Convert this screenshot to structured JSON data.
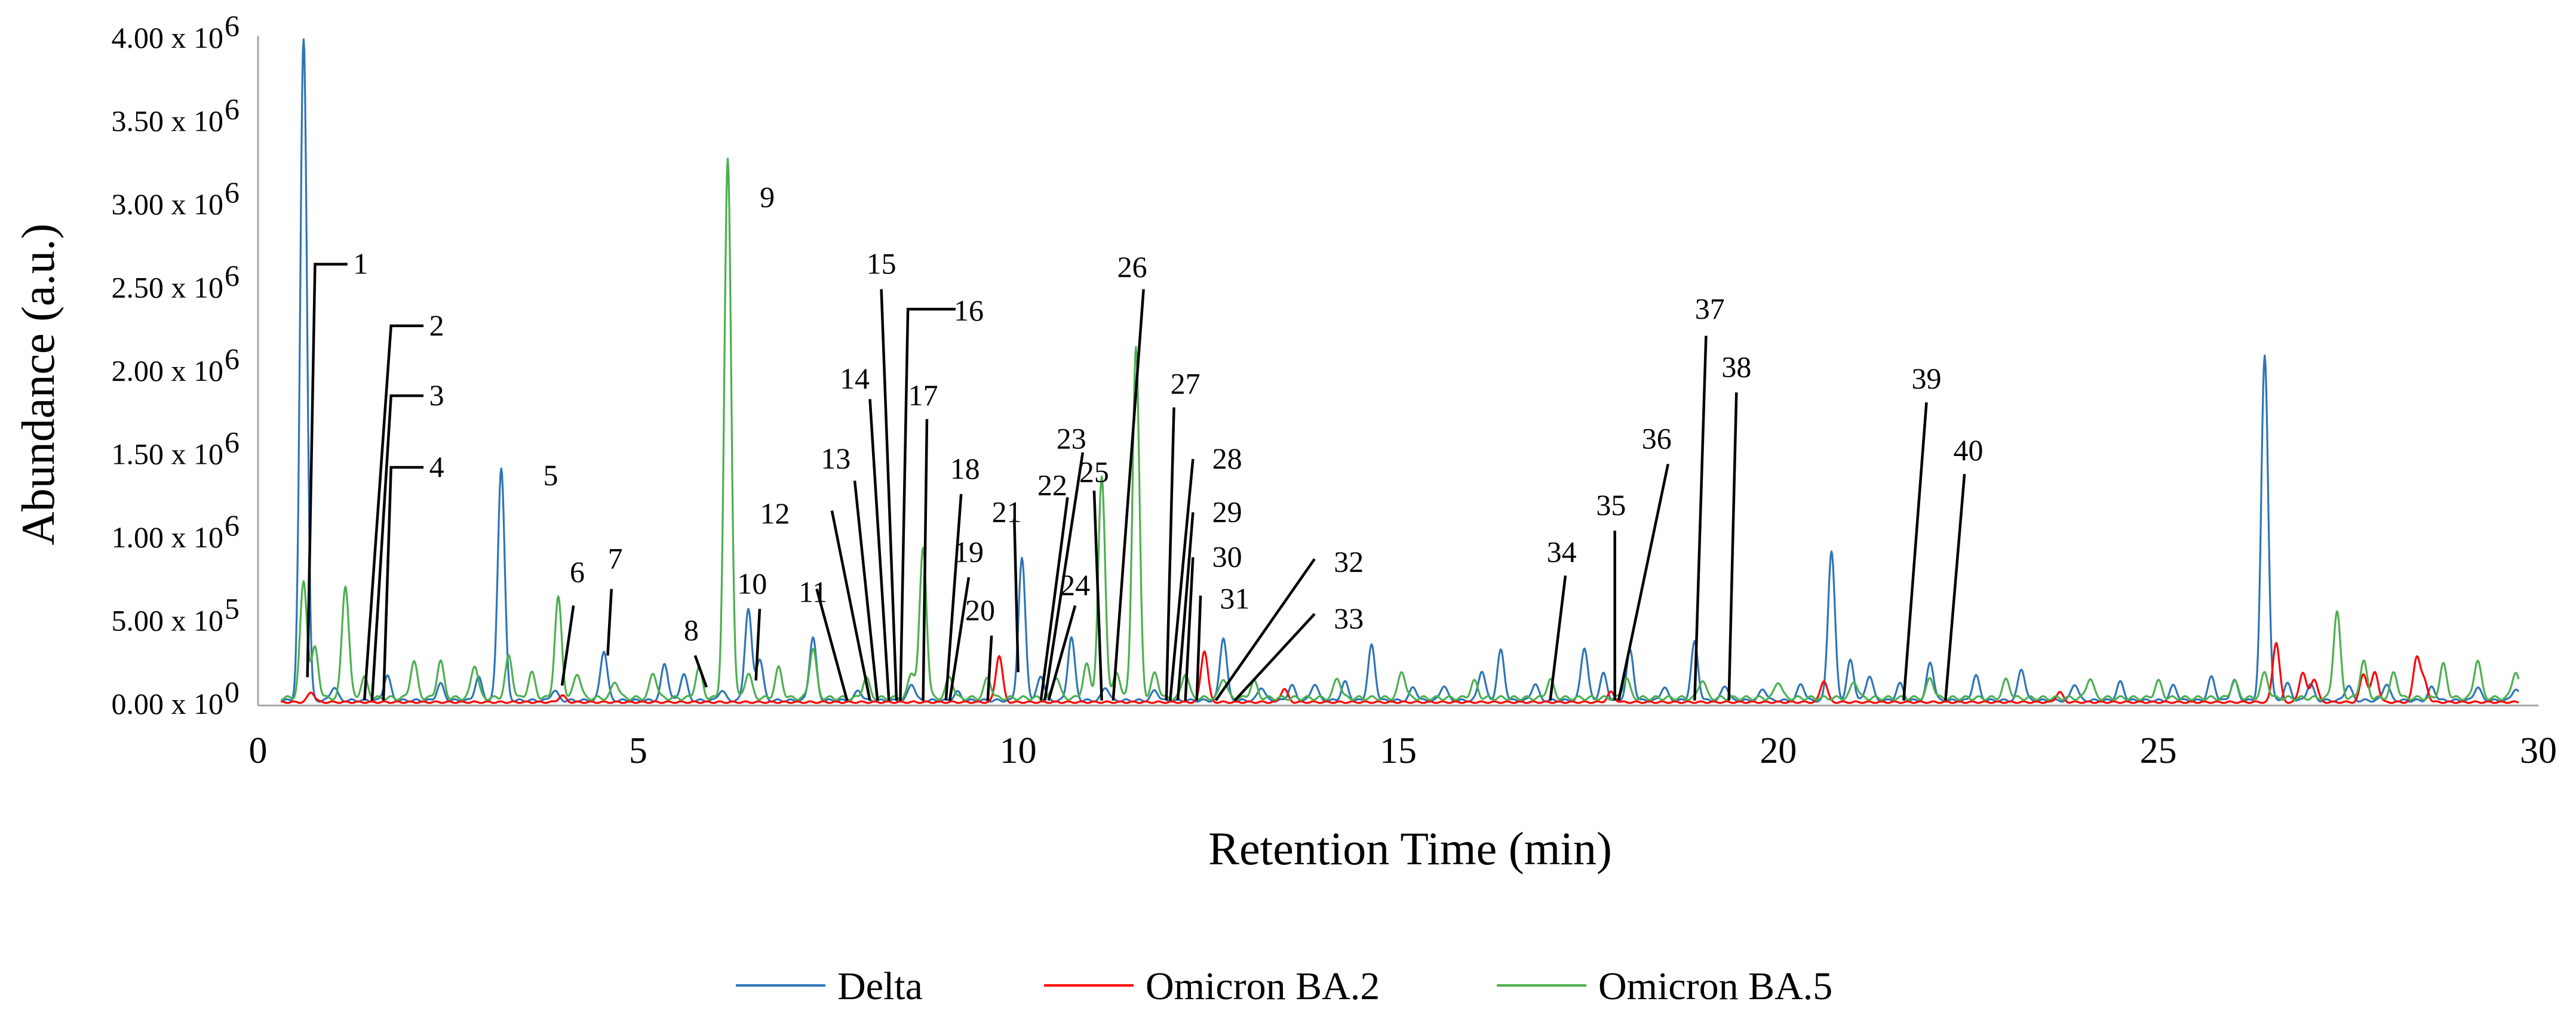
{
  "chart_data": {
    "type": "line",
    "title": "",
    "xlabel": "Retention Time (min)",
    "ylabel": "Abundance (a.u.)",
    "xlim": [
      0,
      30
    ],
    "ylim": [
      0,
      4000000
    ],
    "grid": false,
    "legend_position": "bottom",
    "x_ticks": [
      0,
      5,
      10,
      15,
      20,
      25,
      30
    ],
    "x_tick_labels": [
      "0",
      "5",
      "10",
      "15",
      "20",
      "25",
      "30"
    ],
    "y_ticks": [
      0,
      500000,
      1000000,
      1500000,
      2000000,
      2500000,
      3000000,
      3500000,
      4000000
    ],
    "y_tick_labels": [
      {
        "mantissa": "0.00 x 10",
        "exp": "0"
      },
      {
        "mantissa": "5.00 x 10",
        "exp": "5"
      },
      {
        "mantissa": "1.00 x 10",
        "exp": "6"
      },
      {
        "mantissa": "1.50 x 10",
        "exp": "6"
      },
      {
        "mantissa": "2.00 x 10",
        "exp": "6"
      },
      {
        "mantissa": "2.50 x 10",
        "exp": "6"
      },
      {
        "mantissa": "3.00 x 10",
        "exp": "6"
      },
      {
        "mantissa": "3.50 x 10",
        "exp": "6"
      },
      {
        "mantissa": "4.00 x 10",
        "exp": "6"
      }
    ],
    "series": [
      {
        "name": "Delta",
        "color": "#2e75b6",
        "baseline": 30000,
        "peaks": [
          [
            0.6,
            4000000
          ],
          [
            1.0,
            80000
          ],
          [
            1.7,
            150000
          ],
          [
            2.4,
            100000
          ],
          [
            2.9,
            140000
          ],
          [
            3.2,
            1400000
          ],
          [
            3.9,
            60000
          ],
          [
            4.55,
            300000
          ],
          [
            5.35,
            220000
          ],
          [
            5.6,
            160000
          ],
          [
            6.1,
            60000
          ],
          [
            6.45,
            550000
          ],
          [
            6.6,
            250000
          ],
          [
            7.3,
            380000
          ],
          [
            7.9,
            60000
          ],
          [
            8.6,
            100000
          ],
          [
            9.2,
            50000
          ],
          [
            10.05,
            850000
          ],
          [
            10.3,
            150000
          ],
          [
            10.7,
            380000
          ],
          [
            11.15,
            80000
          ],
          [
            11.8,
            60000
          ],
          [
            12.7,
            380000
          ],
          [
            13.2,
            80000
          ],
          [
            13.6,
            90000
          ],
          [
            13.9,
            100000
          ],
          [
            14.3,
            110000
          ],
          [
            14.65,
            330000
          ],
          [
            15.2,
            80000
          ],
          [
            15.6,
            90000
          ],
          [
            16.1,
            180000
          ],
          [
            16.35,
            300000
          ],
          [
            16.8,
            100000
          ],
          [
            17.45,
            320000
          ],
          [
            17.7,
            160000
          ],
          [
            18.05,
            300000
          ],
          [
            18.5,
            80000
          ],
          [
            18.9,
            350000
          ],
          [
            19.3,
            90000
          ],
          [
            19.8,
            70000
          ],
          [
            20.3,
            100000
          ],
          [
            20.7,
            900000
          ],
          [
            20.95,
            240000
          ],
          [
            21.2,
            150000
          ],
          [
            21.6,
            100000
          ],
          [
            22.0,
            230000
          ],
          [
            22.6,
            150000
          ],
          [
            23.2,
            190000
          ],
          [
            23.9,
            100000
          ],
          [
            24.5,
            110000
          ],
          [
            25.2,
            90000
          ],
          [
            25.7,
            140000
          ],
          [
            26.0,
            120000
          ],
          [
            26.4,
            2070000
          ],
          [
            26.7,
            100000
          ],
          [
            27.0,
            100000
          ],
          [
            27.5,
            90000
          ],
          [
            28.0,
            100000
          ],
          [
            28.6,
            80000
          ],
          [
            29.2,
            80000
          ],
          [
            29.7,
            70000
          ]
        ]
      },
      {
        "name": "Omicron BA.2",
        "color": "#ff0000",
        "baseline": 20000,
        "peaks": [
          [
            0.7,
            60000
          ],
          [
            4.0,
            40000
          ],
          [
            9.75,
            280000
          ],
          [
            12.45,
            310000
          ],
          [
            13.5,
            80000
          ],
          [
            17.8,
            60000
          ],
          [
            20.6,
            130000
          ],
          [
            23.7,
            60000
          ],
          [
            26.55,
            360000
          ],
          [
            26.9,
            180000
          ],
          [
            27.05,
            140000
          ],
          [
            27.7,
            170000
          ],
          [
            27.85,
            180000
          ],
          [
            28.4,
            270000
          ],
          [
            28.5,
            120000
          ]
        ]
      },
      {
        "name": "Omicron BA.5",
        "color": "#4caf50",
        "baseline": 45000,
        "peaks": [
          [
            0.6,
            700000
          ],
          [
            0.75,
            300000
          ],
          [
            1.15,
            680000
          ],
          [
            1.4,
            120000
          ],
          [
            2.05,
            220000
          ],
          [
            2.4,
            220000
          ],
          [
            2.85,
            200000
          ],
          [
            3.3,
            250000
          ],
          [
            3.6,
            150000
          ],
          [
            3.95,
            600000
          ],
          [
            4.2,
            150000
          ],
          [
            4.7,
            100000
          ],
          [
            5.2,
            150000
          ],
          [
            5.8,
            180000
          ],
          [
            6.18,
            3230000
          ],
          [
            6.45,
            150000
          ],
          [
            6.85,
            180000
          ],
          [
            7.3,
            300000
          ],
          [
            8.0,
            120000
          ],
          [
            8.6,
            150000
          ],
          [
            8.75,
            900000
          ],
          [
            9.1,
            130000
          ],
          [
            9.6,
            120000
          ],
          [
            10.5,
            130000
          ],
          [
            10.9,
            200000
          ],
          [
            11.1,
            1320000
          ],
          [
            11.3,
            150000
          ],
          [
            11.55,
            2110000
          ],
          [
            11.8,
            150000
          ],
          [
            12.2,
            150000
          ],
          [
            12.7,
            120000
          ],
          [
            13.1,
            100000
          ],
          [
            14.2,
            120000
          ],
          [
            15.05,
            160000
          ],
          [
            16.0,
            100000
          ],
          [
            17.0,
            110000
          ],
          [
            18.0,
            120000
          ],
          [
            19.0,
            110000
          ],
          [
            20.0,
            100000
          ],
          [
            21.0,
            100000
          ],
          [
            22.0,
            120000
          ],
          [
            23.0,
            110000
          ],
          [
            24.1,
            120000
          ],
          [
            25.0,
            100000
          ],
          [
            26.0,
            100000
          ],
          [
            26.4,
            150000
          ],
          [
            27.35,
            520000
          ],
          [
            27.7,
            220000
          ],
          [
            28.1,
            150000
          ],
          [
            28.75,
            200000
          ],
          [
            29.2,
            230000
          ],
          [
            29.7,
            160000
          ]
        ]
      }
    ],
    "peak_labels": [
      {
        "text": "1",
        "x": 0.65,
        "y": 170000,
        "lx": 0.75,
        "ly": 2650000,
        "tx": 1.35,
        "ty": 2650000
      },
      {
        "text": "2",
        "x": 1.4,
        "y": 30000,
        "lx": 1.75,
        "ly": 2280000,
        "tx": 2.35,
        "ty": 2280000
      },
      {
        "text": "3",
        "x": 1.5,
        "y": 30000,
        "lx": 1.75,
        "ly": 1860000,
        "tx": 2.35,
        "ty": 1860000
      },
      {
        "text": "4",
        "x": 1.65,
        "y": 30000,
        "lx": 1.75,
        "ly": 1430000,
        "tx": 2.35,
        "ty": 1430000
      },
      {
        "text": "5",
        "x": null,
        "y": null,
        "lx": null,
        "ly": null,
        "tx": 3.85,
        "ty": 1380000
      },
      {
        "text": "6",
        "x": 4.0,
        "y": 120000,
        "lx": 4.15,
        "ly": 600000,
        "tx": 4.2,
        "ty": 800000
      },
      {
        "text": "7",
        "x": 4.6,
        "y": 300000,
        "lx": 4.65,
        "ly": 700000,
        "tx": 4.7,
        "ty": 880000
      },
      {
        "text": "8",
        "x": 5.9,
        "y": 110000,
        "lx": 5.75,
        "ly": 300000,
        "tx": 5.7,
        "ty": 450000
      },
      {
        "text": "9",
        "x": null,
        "y": null,
        "lx": null,
        "ly": null,
        "tx": 6.7,
        "ty": 3050000
      },
      {
        "text": "10",
        "x": 6.55,
        "y": 150000,
        "lx": 6.6,
        "ly": 580000,
        "tx": 6.5,
        "ty": 730000
      },
      {
        "text": "11",
        "x": 7.75,
        "y": 30000,
        "lx": 7.35,
        "ly": 700000,
        "tx": 7.3,
        "ty": 680000
      },
      {
        "text": "12",
        "x": 8.05,
        "y": 30000,
        "lx": 7.55,
        "ly": 1170000,
        "tx": 6.8,
        "ty": 1150000
      },
      {
        "text": "13",
        "x": 8.15,
        "y": 30000,
        "lx": 7.85,
        "ly": 1350000,
        "tx": 7.6,
        "ty": 1480000
      },
      {
        "text": "14",
        "x": 8.3,
        "y": 30000,
        "lx": 8.05,
        "ly": 1840000,
        "tx": 7.85,
        "ty": 1960000
      },
      {
        "text": "15",
        "x": 8.4,
        "y": 30000,
        "lx": 8.2,
        "ly": 2500000,
        "tx": 8.2,
        "ty": 2650000
      },
      {
        "text": "16",
        "x": 8.45,
        "y": 30000,
        "lx": 8.55,
        "ly": 2380000,
        "tx": 9.35,
        "ty": 2370000
      },
      {
        "text": "17",
        "x": 8.75,
        "y": 30000,
        "lx": 8.8,
        "ly": 1720000,
        "tx": 8.75,
        "ty": 1860000
      },
      {
        "text": "18",
        "x": 9.05,
        "y": 30000,
        "lx": 9.25,
        "ly": 1270000,
        "tx": 9.3,
        "ty": 1420000
      },
      {
        "text": "19",
        "x": 9.1,
        "y": 30000,
        "lx": 9.35,
        "ly": 770000,
        "tx": 9.35,
        "ty": 920000
      },
      {
        "text": "20",
        "x": 9.6,
        "y": 30000,
        "lx": 9.65,
        "ly": 420000,
        "tx": 9.5,
        "ty": 570000
      },
      {
        "text": "21",
        "x": 10.0,
        "y": 200000,
        "lx": 9.95,
        "ly": 1120000,
        "tx": 9.85,
        "ty": 1160000
      },
      {
        "text": "22",
        "x": 10.3,
        "y": 30000,
        "lx": 10.65,
        "ly": 1250000,
        "tx": 10.45,
        "ty": 1320000
      },
      {
        "text": "23",
        "x": 10.35,
        "y": 30000,
        "lx": 10.85,
        "ly": 1520000,
        "tx": 10.7,
        "ty": 1600000
      },
      {
        "text": "24",
        "x": 10.4,
        "y": 30000,
        "lx": 10.75,
        "ly": 600000,
        "tx": 10.75,
        "ty": 720000
      },
      {
        "text": "25",
        "x": 11.1,
        "y": 30000,
        "lx": 11.0,
        "ly": 1290000,
        "tx": 11.0,
        "ty": 1400000
      },
      {
        "text": "26",
        "x": 11.25,
        "y": 30000,
        "lx": 11.65,
        "ly": 2500000,
        "tx": 11.5,
        "ty": 2630000
      },
      {
        "text": "27",
        "x": 11.95,
        "y": 30000,
        "lx": 12.05,
        "ly": 1790000,
        "tx": 12.2,
        "ty": 1930000
      },
      {
        "text": "28",
        "x": 12.0,
        "y": 30000,
        "lx": 12.3,
        "ly": 1480000,
        "tx": 12.75,
        "ty": 1480000
      },
      {
        "text": "29",
        "x": 12.1,
        "y": 30000,
        "lx": 12.3,
        "ly": 1160000,
        "tx": 12.75,
        "ty": 1160000
      },
      {
        "text": "30",
        "x": 12.2,
        "y": 30000,
        "lx": 12.3,
        "ly": 890000,
        "tx": 12.75,
        "ty": 890000
      },
      {
        "text": "31",
        "x": 12.35,
        "y": 30000,
        "lx": 12.4,
        "ly": 660000,
        "tx": 12.85,
        "ty": 640000
      },
      {
        "text": "32",
        "x": 12.6,
        "y": 30000,
        "lx": 13.9,
        "ly": 880000,
        "tx": 14.35,
        "ty": 860000
      },
      {
        "text": "33",
        "x": 12.85,
        "y": 30000,
        "lx": 13.9,
        "ly": 550000,
        "tx": 14.35,
        "ty": 520000
      },
      {
        "text": "34",
        "x": 17.0,
        "y": 30000,
        "lx": 17.2,
        "ly": 780000,
        "tx": 17.15,
        "ty": 920000
      },
      {
        "text": "35",
        "x": 17.85,
        "y": 30000,
        "lx": 17.85,
        "ly": 1050000,
        "tx": 17.8,
        "ty": 1200000
      },
      {
        "text": "36",
        "x": 17.9,
        "y": 30000,
        "lx": 18.55,
        "ly": 1450000,
        "tx": 18.4,
        "ty": 1600000
      },
      {
        "text": "37",
        "x": 18.9,
        "y": 30000,
        "lx": 19.05,
        "ly": 2220000,
        "tx": 19.1,
        "ty": 2380000
      },
      {
        "text": "38",
        "x": 19.35,
        "y": 30000,
        "lx": 19.45,
        "ly": 1880000,
        "tx": 19.45,
        "ty": 2030000
      },
      {
        "text": "39",
        "x": 21.65,
        "y": 30000,
        "lx": 21.95,
        "ly": 1820000,
        "tx": 21.95,
        "ty": 1960000
      },
      {
        "text": "40",
        "x": 22.2,
        "y": 30000,
        "lx": 22.45,
        "ly": 1390000,
        "tx": 22.5,
        "ty": 1530000
      }
    ]
  }
}
